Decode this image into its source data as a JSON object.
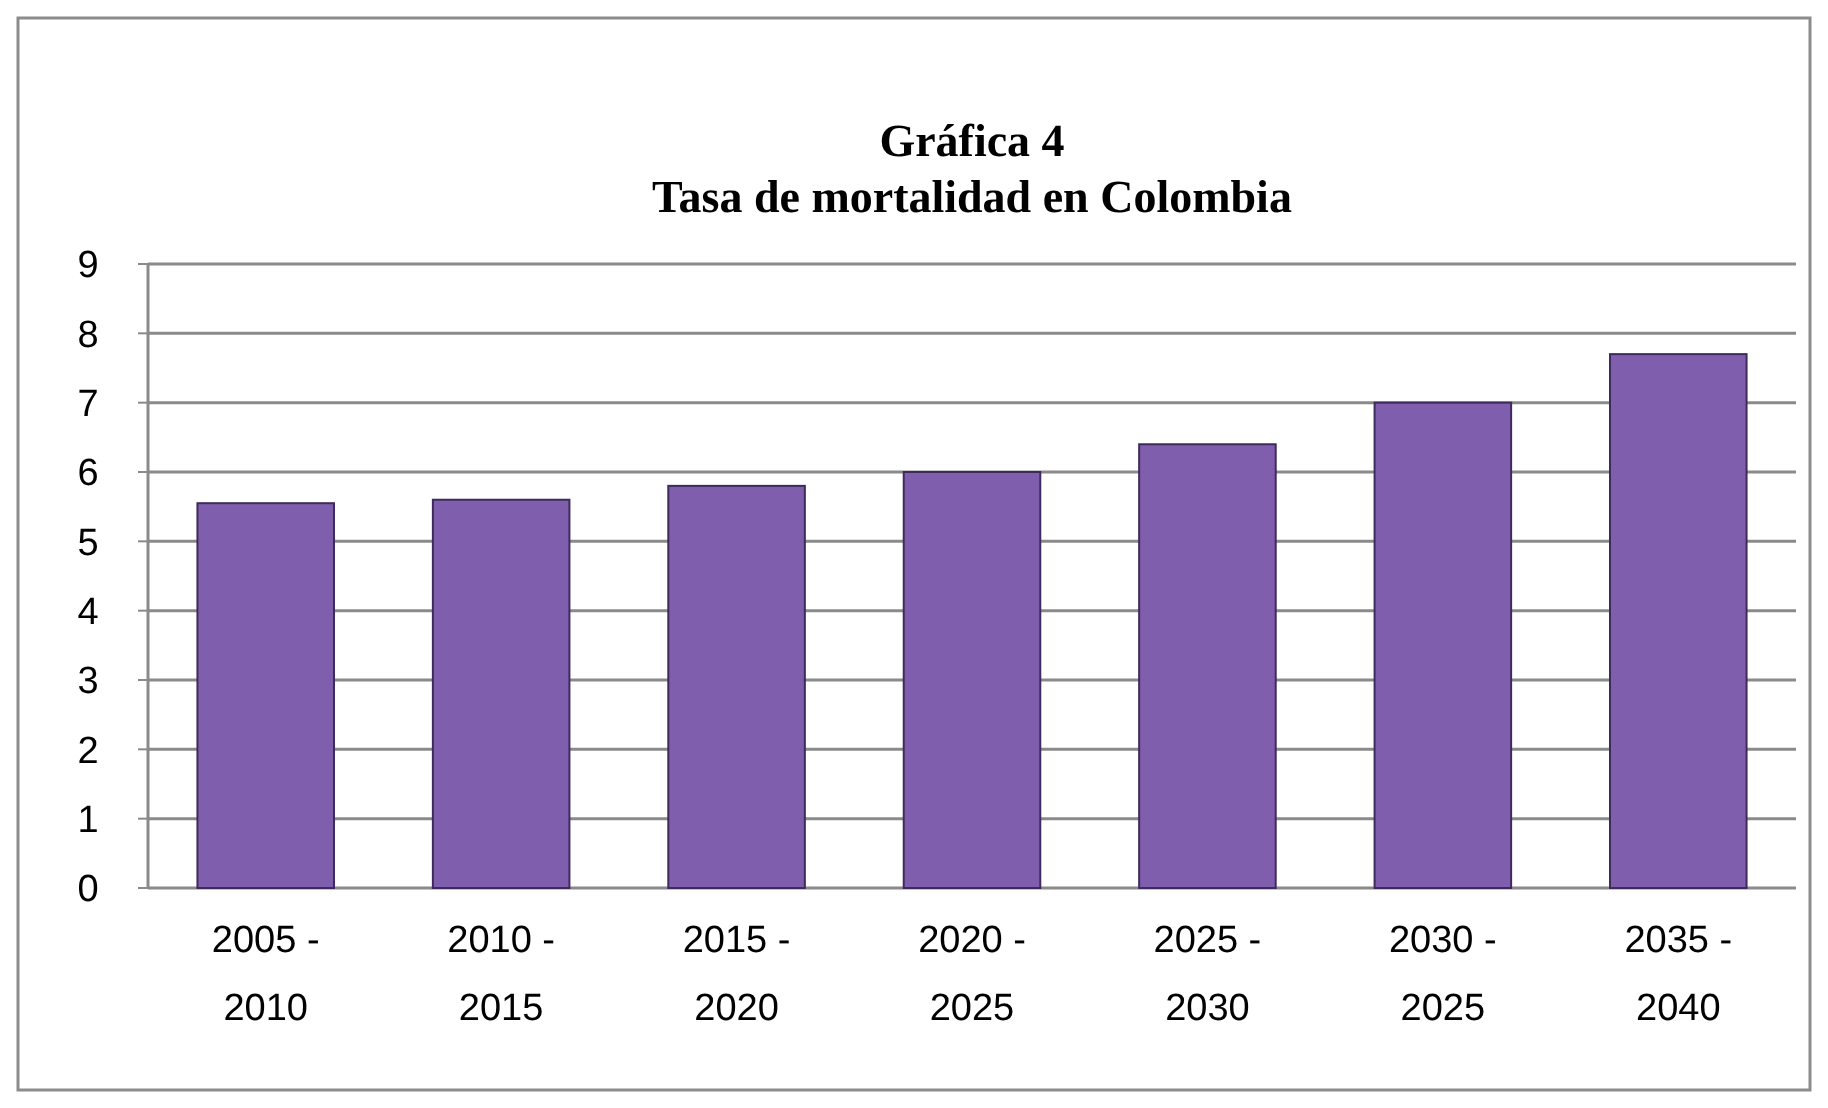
{
  "chart_data": {
    "type": "bar",
    "title": "Gráfica 4\nTasa de mortalidad en Colombia",
    "categories": [
      "2005 -\n2010",
      "2010 -\n2015",
      "2015 -\n2020",
      "2020 -\n2025",
      "2025 -\n2030",
      "2030 -\n2025",
      "2035 -\n2040"
    ],
    "values": [
      5.55,
      5.6,
      5.8,
      6.0,
      6.4,
      7.0,
      7.7
    ],
    "color": "#7f5fad",
    "ylim": [
      0,
      9
    ],
    "yticks": [
      0,
      1,
      2,
      3,
      4,
      5,
      6,
      7,
      8,
      9
    ],
    "grid": "y"
  }
}
